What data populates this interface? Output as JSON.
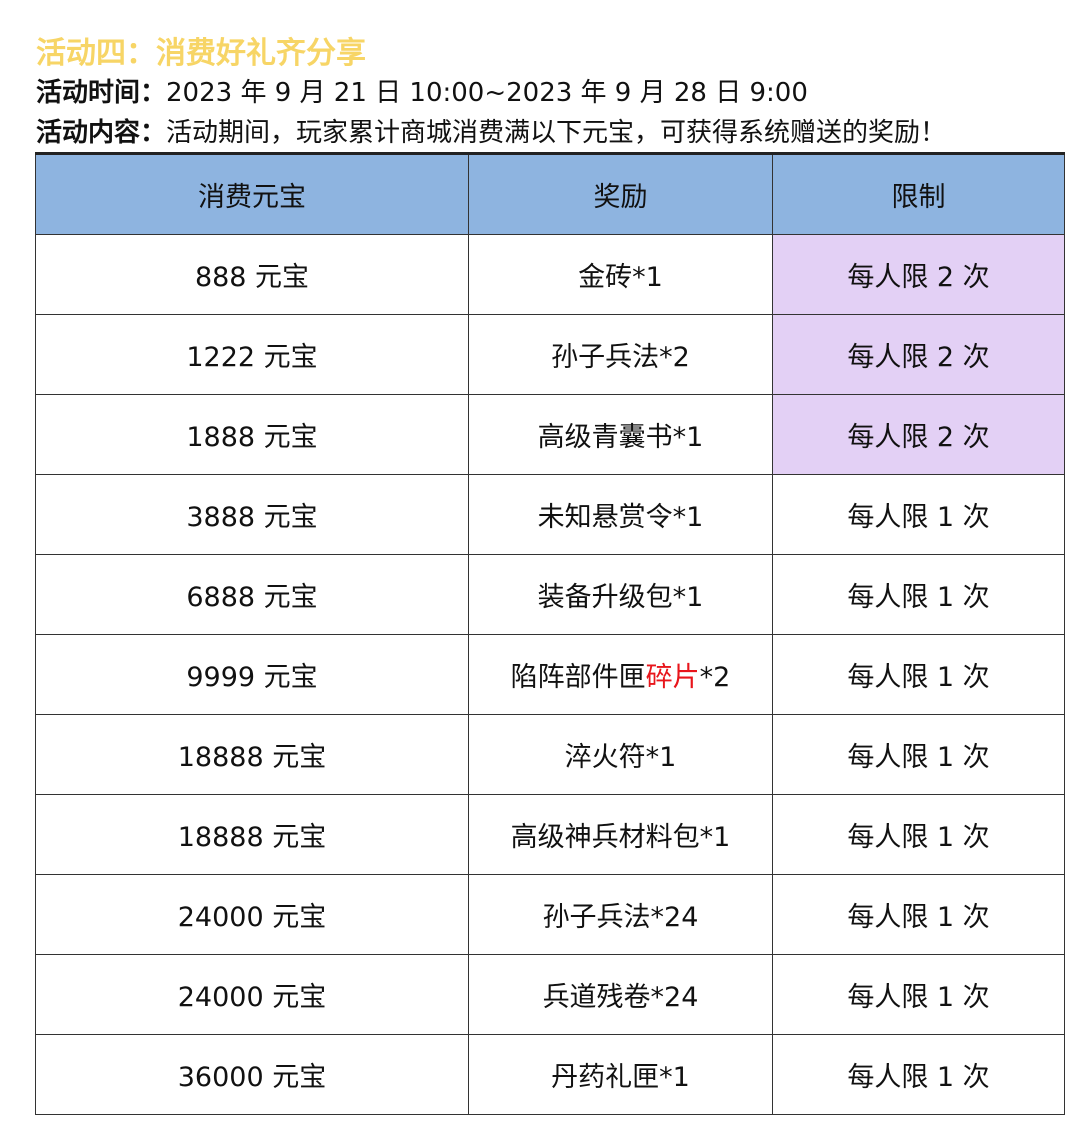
{
  "header": {
    "title": "活动四：消费好礼齐分享",
    "time_label": "活动时间：",
    "time": "2023 年 9 月 21 日 10:00~2023 年 9 月 28 日 9:00",
    "content_label": "活动内容：",
    "content": "活动期间，玩家累计商城消费满以下元宝，可获得系统赠送的奖励！"
  },
  "table": {
    "columns": [
      "消费元宝",
      "奖励",
      "限制"
    ],
    "rows": [
      [
        "888 元宝",
        "金砖*1",
        "每人限 2 次"
      ],
      [
        "1222 元宝",
        "孙子兵法*2",
        "每人限 2 次"
      ],
      [
        "1888 元宝",
        "高级青囊书*1",
        "每人限 2 次"
      ],
      [
        "3888 元宝",
        "未知悬赏令*1",
        "每人限 1 次"
      ],
      [
        "6888 元宝",
        "装备升级包*1",
        "每人限 1 次"
      ],
      [
        "9999 元宝",
        [
          "陷阵部件匣",
          "碎片",
          "*2"
        ],
        "每人限 1 次"
      ],
      [
        "18888 元宝",
        "淬火符*1",
        "每人限 1 次"
      ],
      [
        "18888 元宝",
        "高级神兵材料包*1",
        "每人限 1 次"
      ],
      [
        "24000 元宝",
        "孙子兵法*24",
        "每人限 1 次"
      ],
      [
        "24000 元宝",
        "兵道残卷*24",
        "每人限 1 次"
      ],
      [
        "36000 元宝",
        "丹药礼匣*1",
        "每人限 1 次"
      ]
    ]
  }
}
